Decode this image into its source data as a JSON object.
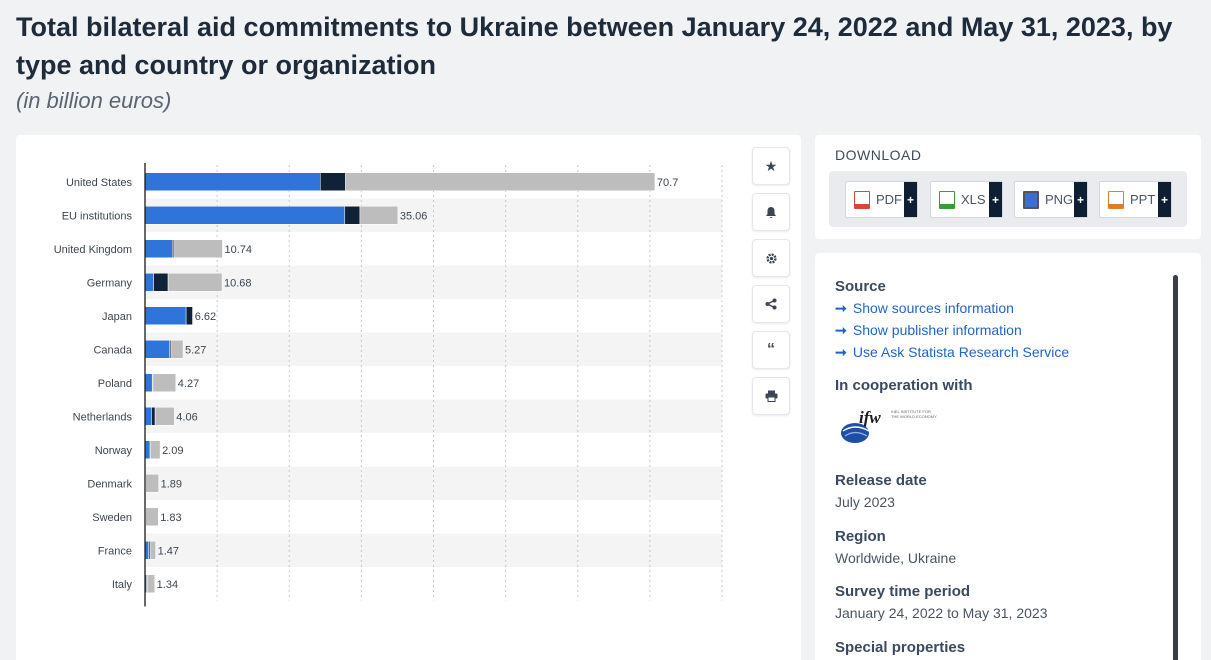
{
  "header": {
    "title": "Total bilateral aid commitments to Ukraine between January 24, 2022 and May 31, 2023, by type and country or organization",
    "subtitle": "(in billion euros)"
  },
  "colors": {
    "series1": "#2f74d9",
    "series2": "#0f2238",
    "series3": "#bdbdbd",
    "accent": "#1f65c6"
  },
  "chart_data": {
    "type": "bar",
    "orientation": "horizontal",
    "stacked": true,
    "categories": [
      "United States",
      "EU institutions",
      "United Kingdom",
      "Germany",
      "Japan",
      "Canada",
      "Poland",
      "Netherlands",
      "Norway",
      "Denmark",
      "Sweden",
      "France",
      "Italy"
    ],
    "series": [
      {
        "values": [
          24.3,
          27.7,
          3.8,
          1.2,
          5.7,
          3.4,
          1.0,
          0.9,
          0.7,
          0.05,
          0.05,
          0.5,
          0.2
        ]
      },
      {
        "values": [
          3.5,
          2.1,
          0.2,
          2.0,
          0.9,
          0.2,
          0.1,
          0.5,
          0.05,
          0.05,
          0.05,
          0.2,
          0.1
        ]
      },
      {
        "values": [
          42.9,
          5.26,
          6.74,
          7.48,
          0.02,
          1.67,
          3.17,
          2.66,
          1.34,
          1.79,
          1.73,
          0.77,
          1.04
        ]
      }
    ],
    "totals": [
      "70.7",
      "35.06",
      "10.74",
      "10.68",
      "6.62",
      "5.27",
      "4.27",
      "4.06",
      "2.09",
      "1.89",
      "1.83",
      "1.47",
      "1.34"
    ],
    "xlim": [
      0,
      80
    ],
    "grid": true
  },
  "toolbar": {
    "icons": [
      "star-icon",
      "bell-icon",
      "gear-icon",
      "share-icon",
      "quote-icon",
      "print-icon"
    ]
  },
  "download": {
    "title": "DOWNLOAD",
    "buttons": [
      {
        "label": "PDF",
        "color": "#d9453a"
      },
      {
        "label": "XLS",
        "color": "#3a9a3a"
      },
      {
        "label": "PNG",
        "color": "#3a6ed0"
      },
      {
        "label": "PPT",
        "color": "#e07b2a"
      }
    ],
    "plus": "+"
  },
  "info": {
    "source_heading": "Source",
    "links": [
      "Show sources information",
      "Show publisher information",
      "Use Ask Statista Research Service"
    ],
    "coop_heading": "In cooperation with",
    "logo_text": "ifw",
    "logo_sub": "KIEL INSTITUTE FOR THE WORLD ECONOMY",
    "release_heading": "Release date",
    "release_value": "July 2023",
    "region_heading": "Region",
    "region_value": "Worldwide, Ukraine",
    "period_heading": "Survey time period",
    "period_value": "January 24, 2022 to May 31, 2023",
    "special_heading": "Special properties"
  }
}
